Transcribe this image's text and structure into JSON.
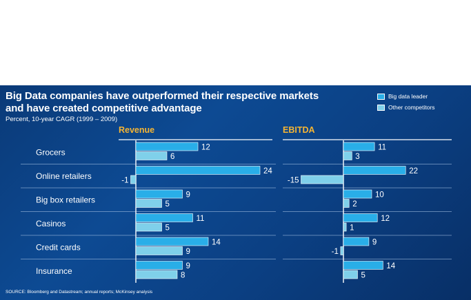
{
  "title_line1": "Big Data companies have outperformed their respective markets",
  "title_line2": "and have created competitive advantage",
  "subtitle": "Percent, 10-year CAGR (1999 – 2009)",
  "source": "SOURCE: Bloomberg and Datastream; annual reports; McKinsey analysis",
  "colors": {
    "leader": "#29aee8",
    "other": "#7fd0ea",
    "panel_title": "#f6b533",
    "background": "#0b4189"
  },
  "chart_data": [
    {
      "type": "bar",
      "orientation": "horizontal",
      "title": "Revenue",
      "categories": [
        "Grocers",
        "Online retailers",
        "Big box retailers",
        "Casinos",
        "Credit cards",
        "Insurance"
      ],
      "series": [
        {
          "name": "Big data leader",
          "values": [
            12,
            24,
            9,
            11,
            14,
            9
          ]
        },
        {
          "name": "Other competitors",
          "values": [
            6,
            -1,
            5,
            5,
            9,
            8
          ]
        }
      ],
      "legend_position": "top-right"
    },
    {
      "type": "bar",
      "orientation": "horizontal",
      "title": "EBITDA",
      "categories": [
        "Grocers",
        "Online retailers",
        "Big box retailers",
        "Casinos",
        "Credit cards",
        "Insurance"
      ],
      "series": [
        {
          "name": "Big data leader",
          "values": [
            11,
            22,
            10,
            12,
            9,
            14
          ]
        },
        {
          "name": "Other competitors",
          "values": [
            3,
            -15,
            2,
            1,
            -1,
            5
          ]
        }
      ],
      "legend_position": "top-right"
    }
  ]
}
